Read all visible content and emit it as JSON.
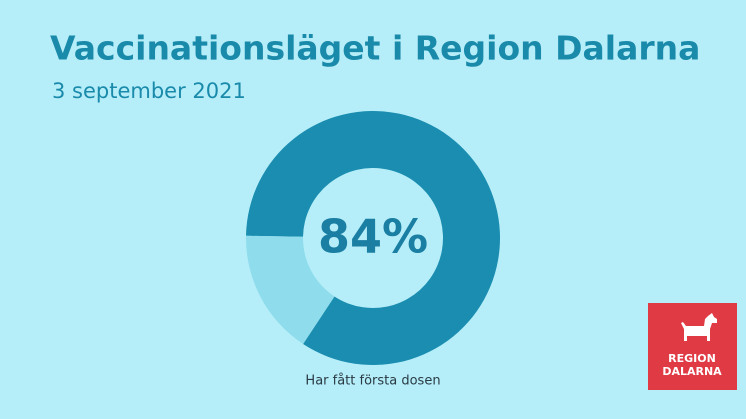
{
  "chart_data": {
    "type": "donut",
    "title": "Vaccinationsläget i Region Dalarna",
    "subtitle": "3 september 2021",
    "categories": [
      "Har fått första dosen",
      null
    ],
    "values": [
      84,
      16
    ],
    "value_labels": [
      "84%",
      null
    ],
    "colors": [
      "#1a8db0",
      "#8edcec"
    ]
  },
  "logo": {
    "lines": [
      "REGION",
      "DALARNA"
    ]
  }
}
